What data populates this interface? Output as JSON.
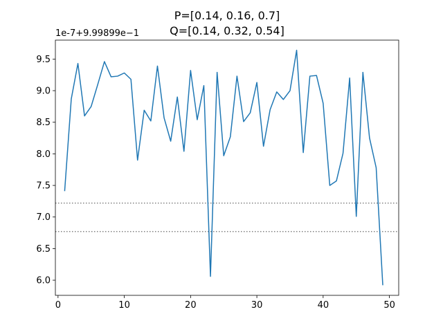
{
  "chart_data": {
    "type": "line",
    "title_lines": [
      "P=[0.14, 0.16, 0.7]",
      "Q=[0.14, 0.32, 0.54]"
    ],
    "offset_text": "1e-7+9.99899e−1",
    "x": [
      1,
      2,
      3,
      4,
      5,
      6,
      7,
      8,
      9,
      10,
      11,
      12,
      13,
      14,
      15,
      16,
      17,
      18,
      19,
      20,
      21,
      22,
      23,
      24,
      25,
      26,
      27,
      28,
      29,
      30,
      31,
      32,
      33,
      34,
      35,
      36,
      37,
      38,
      39,
      40,
      41,
      42,
      43,
      44,
      45,
      46,
      47,
      48,
      49
    ],
    "y": [
      7.41,
      8.87,
      9.43,
      8.6,
      8.75,
      9.1,
      9.46,
      9.22,
      9.23,
      9.28,
      9.18,
      7.9,
      8.69,
      8.52,
      9.39,
      8.57,
      8.2,
      8.9,
      8.04,
      9.32,
      8.54,
      9.08,
      6.06,
      9.29,
      7.97,
      8.27,
      9.23,
      8.51,
      8.65,
      9.13,
      8.12,
      8.7,
      8.98,
      8.86,
      9.0,
      9.64,
      8.02,
      9.23,
      9.24,
      8.8,
      7.5,
      7.57,
      8.01,
      9.2,
      7.01,
      9.29,
      8.25,
      7.78,
      5.92
    ],
    "hlines": [
      7.22,
      6.77
    ],
    "xlim": [
      -0.4,
      51.4
    ],
    "ylim": [
      5.76,
      9.8
    ],
    "xticks": [
      0,
      10,
      20,
      30,
      40,
      50
    ],
    "yticks": [
      6.0,
      6.5,
      7.0,
      7.5,
      8.0,
      8.5,
      9.0,
      9.5
    ],
    "ytick_labels": [
      "6.0",
      "6.5",
      "7.0",
      "7.5",
      "8.0",
      "8.5",
      "9.0",
      "9.5"
    ],
    "line_color": "#1f77b4",
    "hline_color": "#808080"
  }
}
